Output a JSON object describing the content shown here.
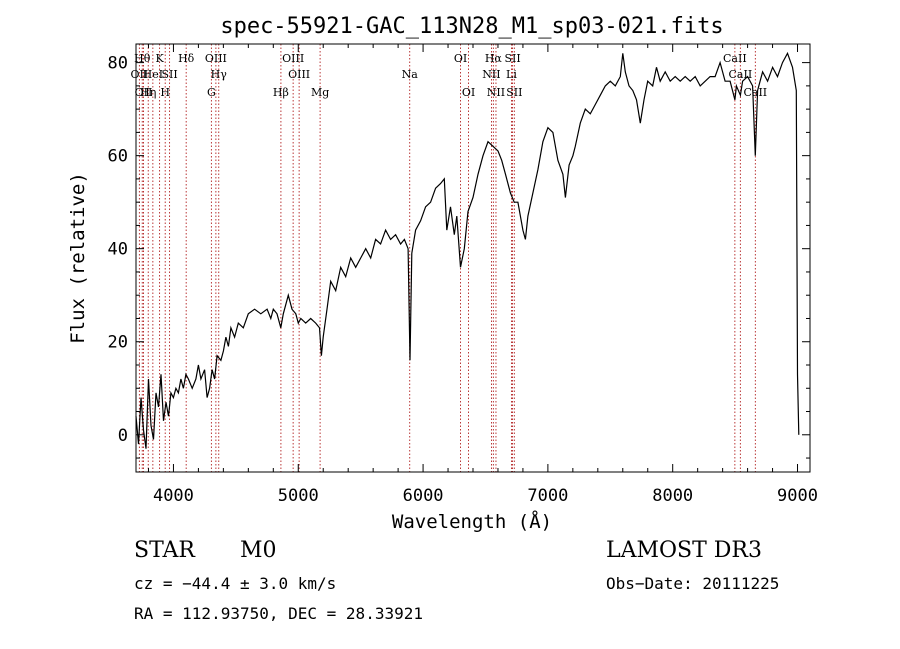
{
  "chart_data": {
    "type": "line",
    "title": "spec-55921-GAC_113N28_M1_sp03-021.fits",
    "xlabel": "Wavelength (Å)",
    "ylabel": "Flux (relative)",
    "xlim": [
      3700,
      9100
    ],
    "ylim": [
      -8,
      84
    ],
    "x_ticks": [
      4000,
      5000,
      6000,
      7000,
      8000,
      9000
    ],
    "y_ticks": [
      0,
      20,
      40,
      60,
      80
    ],
    "series": [
      {
        "name": "flux",
        "points": [
          [
            3700,
            4
          ],
          [
            3720,
            -2
          ],
          [
            3740,
            8
          ],
          [
            3760,
            1
          ],
          [
            3780,
            -3
          ],
          [
            3800,
            12
          ],
          [
            3820,
            2
          ],
          [
            3840,
            -1
          ],
          [
            3860,
            9
          ],
          [
            3880,
            6
          ],
          [
            3900,
            13
          ],
          [
            3920,
            3
          ],
          [
            3940,
            7
          ],
          [
            3960,
            4
          ],
          [
            3980,
            9
          ],
          [
            4000,
            8
          ],
          [
            4020,
            10
          ],
          [
            4040,
            9
          ],
          [
            4060,
            12
          ],
          [
            4080,
            10
          ],
          [
            4100,
            13
          ],
          [
            4120,
            12
          ],
          [
            4150,
            10
          ],
          [
            4180,
            12
          ],
          [
            4200,
            15
          ],
          [
            4220,
            12
          ],
          [
            4250,
            14
          ],
          [
            4270,
            8
          ],
          [
            4290,
            10
          ],
          [
            4310,
            14
          ],
          [
            4330,
            12
          ],
          [
            4350,
            17
          ],
          [
            4380,
            16
          ],
          [
            4400,
            18
          ],
          [
            4420,
            21
          ],
          [
            4440,
            19
          ],
          [
            4460,
            23
          ],
          [
            4490,
            21
          ],
          [
            4520,
            24
          ],
          [
            4560,
            23
          ],
          [
            4600,
            26
          ],
          [
            4650,
            27
          ],
          [
            4700,
            26
          ],
          [
            4750,
            27
          ],
          [
            4780,
            25
          ],
          [
            4800,
            27
          ],
          [
            4830,
            26
          ],
          [
            4860,
            23
          ],
          [
            4880,
            26
          ],
          [
            4920,
            30
          ],
          [
            4950,
            27
          ],
          [
            4980,
            26
          ],
          [
            5000,
            24
          ],
          [
            5020,
            25
          ],
          [
            5060,
            24
          ],
          [
            5100,
            25
          ],
          [
            5140,
            24
          ],
          [
            5170,
            23
          ],
          [
            5185,
            17
          ],
          [
            5200,
            21
          ],
          [
            5230,
            27
          ],
          [
            5260,
            33
          ],
          [
            5300,
            31
          ],
          [
            5340,
            36
          ],
          [
            5380,
            34
          ],
          [
            5420,
            38
          ],
          [
            5460,
            36
          ],
          [
            5500,
            38
          ],
          [
            5540,
            40
          ],
          [
            5580,
            38
          ],
          [
            5620,
            42
          ],
          [
            5660,
            41
          ],
          [
            5700,
            44
          ],
          [
            5740,
            42
          ],
          [
            5780,
            43
          ],
          [
            5820,
            41
          ],
          [
            5850,
            42
          ],
          [
            5880,
            40
          ],
          [
            5895,
            16
          ],
          [
            5910,
            39
          ],
          [
            5940,
            44
          ],
          [
            5980,
            46
          ],
          [
            6020,
            49
          ],
          [
            6060,
            50
          ],
          [
            6100,
            53
          ],
          [
            6140,
            54
          ],
          [
            6170,
            55
          ],
          [
            6190,
            44
          ],
          [
            6220,
            49
          ],
          [
            6250,
            43
          ],
          [
            6270,
            47
          ],
          [
            6300,
            36
          ],
          [
            6330,
            40
          ],
          [
            6360,
            48
          ],
          [
            6400,
            51
          ],
          [
            6440,
            56
          ],
          [
            6480,
            60
          ],
          [
            6520,
            63
          ],
          [
            6560,
            62
          ],
          [
            6600,
            61
          ],
          [
            6630,
            59
          ],
          [
            6660,
            56
          ],
          [
            6700,
            52
          ],
          [
            6730,
            50
          ],
          [
            6760,
            50
          ],
          [
            6780,
            47
          ],
          [
            6800,
            44
          ],
          [
            6820,
            42
          ],
          [
            6840,
            47
          ],
          [
            6880,
            52
          ],
          [
            6920,
            57
          ],
          [
            6960,
            63
          ],
          [
            7000,
            66
          ],
          [
            7040,
            65
          ],
          [
            7080,
            59
          ],
          [
            7120,
            56
          ],
          [
            7140,
            51
          ],
          [
            7170,
            58
          ],
          [
            7200,
            60
          ],
          [
            7220,
            62
          ],
          [
            7260,
            67
          ],
          [
            7300,
            70
          ],
          [
            7340,
            69
          ],
          [
            7380,
            71
          ],
          [
            7420,
            73
          ],
          [
            7460,
            75
          ],
          [
            7500,
            76
          ],
          [
            7540,
            75
          ],
          [
            7580,
            77
          ],
          [
            7600,
            82
          ],
          [
            7620,
            78
          ],
          [
            7650,
            75
          ],
          [
            7680,
            74
          ],
          [
            7710,
            72
          ],
          [
            7740,
            67
          ],
          [
            7770,
            72
          ],
          [
            7800,
            76
          ],
          [
            7840,
            75
          ],
          [
            7870,
            79
          ],
          [
            7900,
            76
          ],
          [
            7940,
            78
          ],
          [
            7980,
            76
          ],
          [
            8020,
            77
          ],
          [
            8060,
            76
          ],
          [
            8100,
            77
          ],
          [
            8140,
            76
          ],
          [
            8180,
            77
          ],
          [
            8220,
            75
          ],
          [
            8260,
            76
          ],
          [
            8300,
            77
          ],
          [
            8340,
            77
          ],
          [
            8380,
            80
          ],
          [
            8420,
            76
          ],
          [
            8460,
            76
          ],
          [
            8498,
            72
          ],
          [
            8510,
            75
          ],
          [
            8542,
            73
          ],
          [
            8560,
            76
          ],
          [
            8600,
            77
          ],
          [
            8640,
            75
          ],
          [
            8662,
            60
          ],
          [
            8680,
            74
          ],
          [
            8720,
            78
          ],
          [
            8760,
            76
          ],
          [
            8800,
            79
          ],
          [
            8840,
            77
          ],
          [
            8880,
            80
          ],
          [
            8920,
            82
          ],
          [
            8960,
            79
          ],
          [
            8990,
            74
          ],
          [
            9000,
            13
          ],
          [
            9010,
            0
          ]
        ]
      }
    ],
    "lines": [
      {
        "label": "OII",
        "x": 3727,
        "row": 2
      },
      {
        "label": "Hθ",
        "x": 3750,
        "row": 1
      },
      {
        "label": "OII",
        "x": 3760,
        "row": 3
      },
      {
        "label": "Hη",
        "x": 3798,
        "row": 3
      },
      {
        "label": "HeI",
        "x": 3835,
        "row": 2
      },
      {
        "label": "K",
        "x": 3889,
        "row": 1
      },
      {
        "label": "H",
        "x": 3934,
        "row": 3
      },
      {
        "label": "SII",
        "x": 3969,
        "row": 2
      },
      {
        "label": "Hδ",
        "x": 4102,
        "row": 1
      },
      {
        "label": "OIII",
        "x": 4340,
        "row": 1
      },
      {
        "label": "Hγ",
        "x": 4363,
        "row": 2
      },
      {
        "label": "G",
        "x": 4304,
        "row": 3
      },
      {
        "label": "Hβ",
        "x": 4861,
        "row": 3
      },
      {
        "label": "OIII",
        "x": 4959,
        "row": 1
      },
      {
        "label": "OIII",
        "x": 5007,
        "row": 2
      },
      {
        "label": "Mg",
        "x": 5175,
        "row": 3
      },
      {
        "label": "Na",
        "x": 5893,
        "row": 2
      },
      {
        "label": "OI",
        "x": 6300,
        "row": 1
      },
      {
        "label": "OI",
        "x": 6364,
        "row": 3
      },
      {
        "label": "Hα",
        "x": 6563,
        "row": 1
      },
      {
        "label": "NII",
        "x": 6548,
        "row": 2
      },
      {
        "label": "NII",
        "x": 6584,
        "row": 3
      },
      {
        "label": "SII",
        "x": 6717,
        "row": 1
      },
      {
        "label": "Li",
        "x": 6708,
        "row": 2
      },
      {
        "label": "SII",
        "x": 6731,
        "row": 3
      },
      {
        "label": "CaII",
        "x": 8498,
        "row": 1
      },
      {
        "label": "CaII",
        "x": 8542,
        "row": 2
      },
      {
        "label": "CaII",
        "x": 8662,
        "row": 3
      }
    ]
  },
  "info": {
    "class": "STAR",
    "subclass": "M0",
    "survey": "LAMOST DR3",
    "cz": "cz = −44.4 ± 3.0 km/s",
    "obs_date": "Obs−Date: 20111225",
    "radec": "RA = 112.93750, DEC =  28.33921"
  },
  "colors": {
    "line_marker": "#b22222",
    "spectrum": "#000000"
  }
}
